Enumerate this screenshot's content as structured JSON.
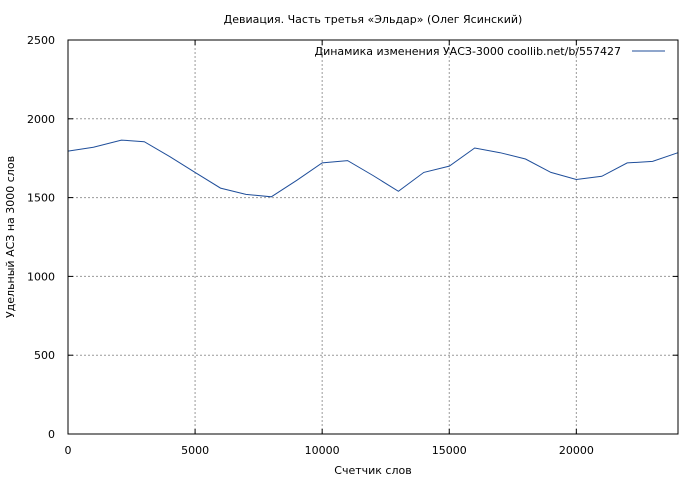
{
  "chart_data": {
    "type": "line",
    "title": "Девиация. Часть третья «Эльдар» (Олег Ясинский)",
    "xlabel": "Счетчик слов",
    "ylabel": "Удельный АСЗ на 3000 слов",
    "xlim": [
      0,
      24000
    ],
    "ylim": [
      0,
      2500
    ],
    "xticks": [
      0,
      5000,
      10000,
      15000,
      20000
    ],
    "yticks": [
      0,
      500,
      1000,
      1500,
      2000,
      2500
    ],
    "grid": true,
    "legend_position": "top-right",
    "series": [
      {
        "name": "Динамика изменения УАСЗ-3000  coollib.net/b/557427",
        "color": "#1f4e9a",
        "x": [
          0,
          1000,
          2100,
          3000,
          4000,
          5000,
          6000,
          7000,
          8000,
          9000,
          10000,
          11000,
          12000,
          13000,
          14000,
          15000,
          16000,
          17000,
          18000,
          19000,
          20000,
          21000,
          22000,
          23000,
          24000
        ],
        "y": [
          1795,
          1820,
          1865,
          1855,
          1760,
          1660,
          1560,
          1520,
          1505,
          1610,
          1720,
          1735,
          1640,
          1540,
          1660,
          1700,
          1815,
          1785,
          1745,
          1660,
          1615,
          1635,
          1720,
          1730,
          1785
        ]
      }
    ]
  }
}
